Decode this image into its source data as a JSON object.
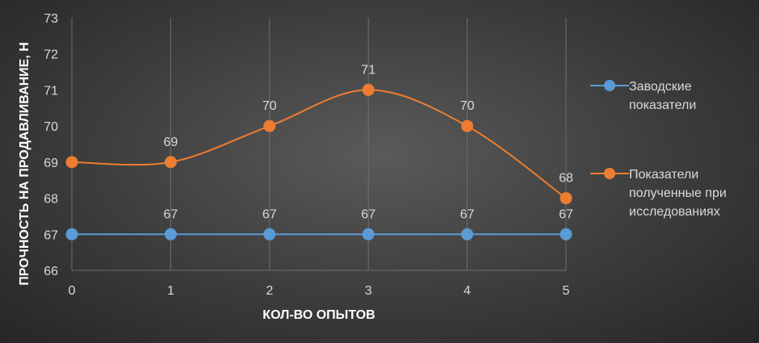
{
  "chart_data": {
    "type": "line",
    "x": [
      0,
      1,
      2,
      3,
      4,
      5
    ],
    "xlabel": "КОЛ-ВО ОПЫТОВ",
    "ylabel": "ПРОЧНОСТЬ НА ПРОДАВЛИВАНИЕ, Н",
    "ylim": [
      66,
      73
    ],
    "yticks": [
      66,
      67,
      68,
      69,
      70,
      71,
      72,
      73
    ],
    "grid": "vertical",
    "legend_position": "right",
    "series": [
      {
        "name_lines": [
          "Заводские",
          "показатели"
        ],
        "values": [
          67,
          67,
          67,
          67,
          67,
          67
        ],
        "labels": [
          "",
          "67",
          "67",
          "67",
          "67",
          "67"
        ],
        "color": "#5b9bd5",
        "smooth": false
      },
      {
        "name_lines": [
          "Показатели",
          "полученные при",
          "исследованиях"
        ],
        "values": [
          69,
          69,
          70,
          71,
          70,
          68
        ],
        "labels": [
          "",
          "69",
          "70",
          "71",
          "70",
          "68"
        ],
        "color": "#ed7d31",
        "smooth": true
      }
    ]
  }
}
